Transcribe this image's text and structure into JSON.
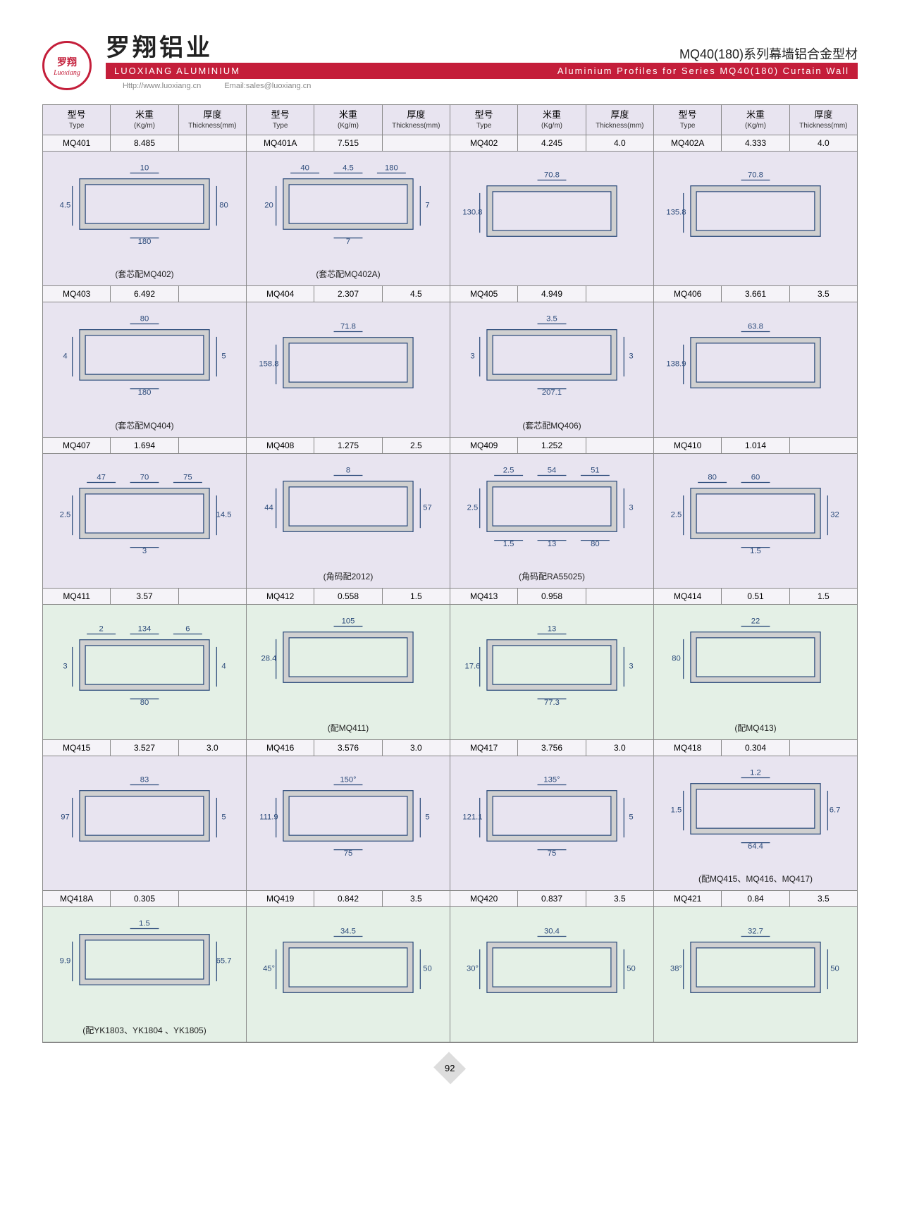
{
  "logo": {
    "cn": "罗翔",
    "en": "Luoxiang"
  },
  "company_cn": "罗翔铝业",
  "company_en": "LUOXIANG ALUMINIUM",
  "series_cn": "MQ40(180)系列幕墙铝合金型材",
  "series_en": "Aluminium Profiles for Series MQ40(180) Curtain Wall",
  "website": "Http://www.luoxiang.cn",
  "email": "Email:sales@luoxiang.cn",
  "page_number": "92",
  "headers": {
    "type_cn": "型号",
    "type_en": "Type",
    "weight_cn": "米重",
    "weight_en": "(Kg/m)",
    "thick_cn": "厚度",
    "thick_en": "Thickness(mm)"
  },
  "rows": [
    {
      "bg": "bg-lav",
      "cells": [
        {
          "type": "MQ401",
          "weight": "8.485",
          "thick": "",
          "note": "(套芯配MQ402)",
          "dims": [
            "10",
            "4.5",
            "80",
            "180"
          ]
        },
        {
          "type": "MQ401A",
          "weight": "7.515",
          "thick": "",
          "note": "(套芯配MQ402A)",
          "dims": [
            "4.5",
            "20",
            "7",
            "7",
            "40",
            "180"
          ]
        },
        {
          "type": "MQ402",
          "weight": "4.245",
          "thick": "4.0",
          "note": "",
          "dims": [
            "70.8",
            "130.8"
          ]
        },
        {
          "type": "MQ402A",
          "weight": "4.333",
          "thick": "4.0",
          "note": "",
          "dims": [
            "70.8",
            "135.8"
          ]
        }
      ]
    },
    {
      "bg": "bg-lav",
      "cells": [
        {
          "type": "MQ403",
          "weight": "6.492",
          "thick": "",
          "note": "(套芯配MQ404)",
          "dims": [
            "80",
            "4",
            "5",
            "180"
          ]
        },
        {
          "type": "MQ404",
          "weight": "2.307",
          "thick": "4.5",
          "note": "",
          "dims": [
            "71.8",
            "158.8"
          ]
        },
        {
          "type": "MQ405",
          "weight": "4.949",
          "thick": "",
          "note": "(套芯配MQ406)",
          "dims": [
            "3.5",
            "3",
            "3",
            "207.1"
          ]
        },
        {
          "type": "MQ406",
          "weight": "3.661",
          "thick": "3.5",
          "note": "",
          "dims": [
            "63.8",
            "138.9"
          ]
        }
      ]
    },
    {
      "bg": "bg-lav",
      "cells": [
        {
          "type": "MQ407",
          "weight": "1.694",
          "thick": "",
          "note": "",
          "dims": [
            "70",
            "2.5",
            "14.5",
            "3",
            "47",
            "75"
          ]
        },
        {
          "type": "MQ408",
          "weight": "1.275",
          "thick": "2.5",
          "note": "(角码配2012)",
          "dims": [
            "8",
            "44",
            "57"
          ]
        },
        {
          "type": "MQ409",
          "weight": "1.252",
          "thick": "",
          "note": "(角码配RA55025)",
          "dims": [
            "54",
            "2.5",
            "3",
            "13",
            "2.5",
            "51",
            "1.5",
            "80"
          ]
        },
        {
          "type": "MQ410",
          "weight": "1.014",
          "thick": "",
          "note": "",
          "dims": [
            "60",
            "2.5",
            "32",
            "1.5",
            "80"
          ]
        }
      ]
    },
    {
      "bg": "bg-grn",
      "cells": [
        {
          "type": "MQ411",
          "weight": "3.57",
          "thick": "",
          "note": "",
          "dims": [
            "134",
            "3",
            "4",
            "80",
            "2",
            "6"
          ]
        },
        {
          "type": "MQ412",
          "weight": "0.558",
          "thick": "1.5",
          "note": "(配MQ411)",
          "dims": [
            "105",
            "28.4"
          ]
        },
        {
          "type": "MQ413",
          "weight": "0.958",
          "thick": "",
          "note": "",
          "dims": [
            "13",
            "17.6",
            "3",
            "77.3"
          ]
        },
        {
          "type": "MQ414",
          "weight": "0.51",
          "thick": "1.5",
          "note": "(配MQ413)",
          "dims": [
            "22",
            "80"
          ]
        }
      ]
    },
    {
      "bg": "bg-lav",
      "cells": [
        {
          "type": "MQ415",
          "weight": "3.527",
          "thick": "3.0",
          "note": "",
          "dims": [
            "83",
            "97",
            "5"
          ]
        },
        {
          "type": "MQ416",
          "weight": "3.576",
          "thick": "3.0",
          "note": "",
          "dims": [
            "150°",
            "111.9",
            "5",
            "75"
          ]
        },
        {
          "type": "MQ417",
          "weight": "3.756",
          "thick": "3.0",
          "note": "",
          "dims": [
            "135°",
            "121.1",
            "5",
            "75"
          ]
        },
        {
          "type": "MQ418",
          "weight": "0.304",
          "thick": "",
          "note": "(配MQ415、MQ416、MQ417)",
          "dims": [
            "1.2",
            "1.5",
            "6.7",
            "64.4"
          ]
        }
      ]
    },
    {
      "bg": "bg-grn",
      "cells": [
        {
          "type": "MQ418A",
          "weight": "0.305",
          "thick": "",
          "note": "(配YK1803、YK1804 、YK1805)",
          "dims": [
            "1.5",
            "9.9",
            "65.7"
          ]
        },
        {
          "type": "MQ419",
          "weight": "0.842",
          "thick": "3.5",
          "note": "",
          "dims": [
            "34.5",
            "45°",
            "50"
          ]
        },
        {
          "type": "MQ420",
          "weight": "0.837",
          "thick": "3.5",
          "note": "",
          "dims": [
            "30.4",
            "30°",
            "50"
          ]
        },
        {
          "type": "MQ421",
          "weight": "0.84",
          "thick": "3.5",
          "note": "",
          "dims": [
            "32.7",
            "38°",
            "50"
          ]
        }
      ]
    }
  ]
}
